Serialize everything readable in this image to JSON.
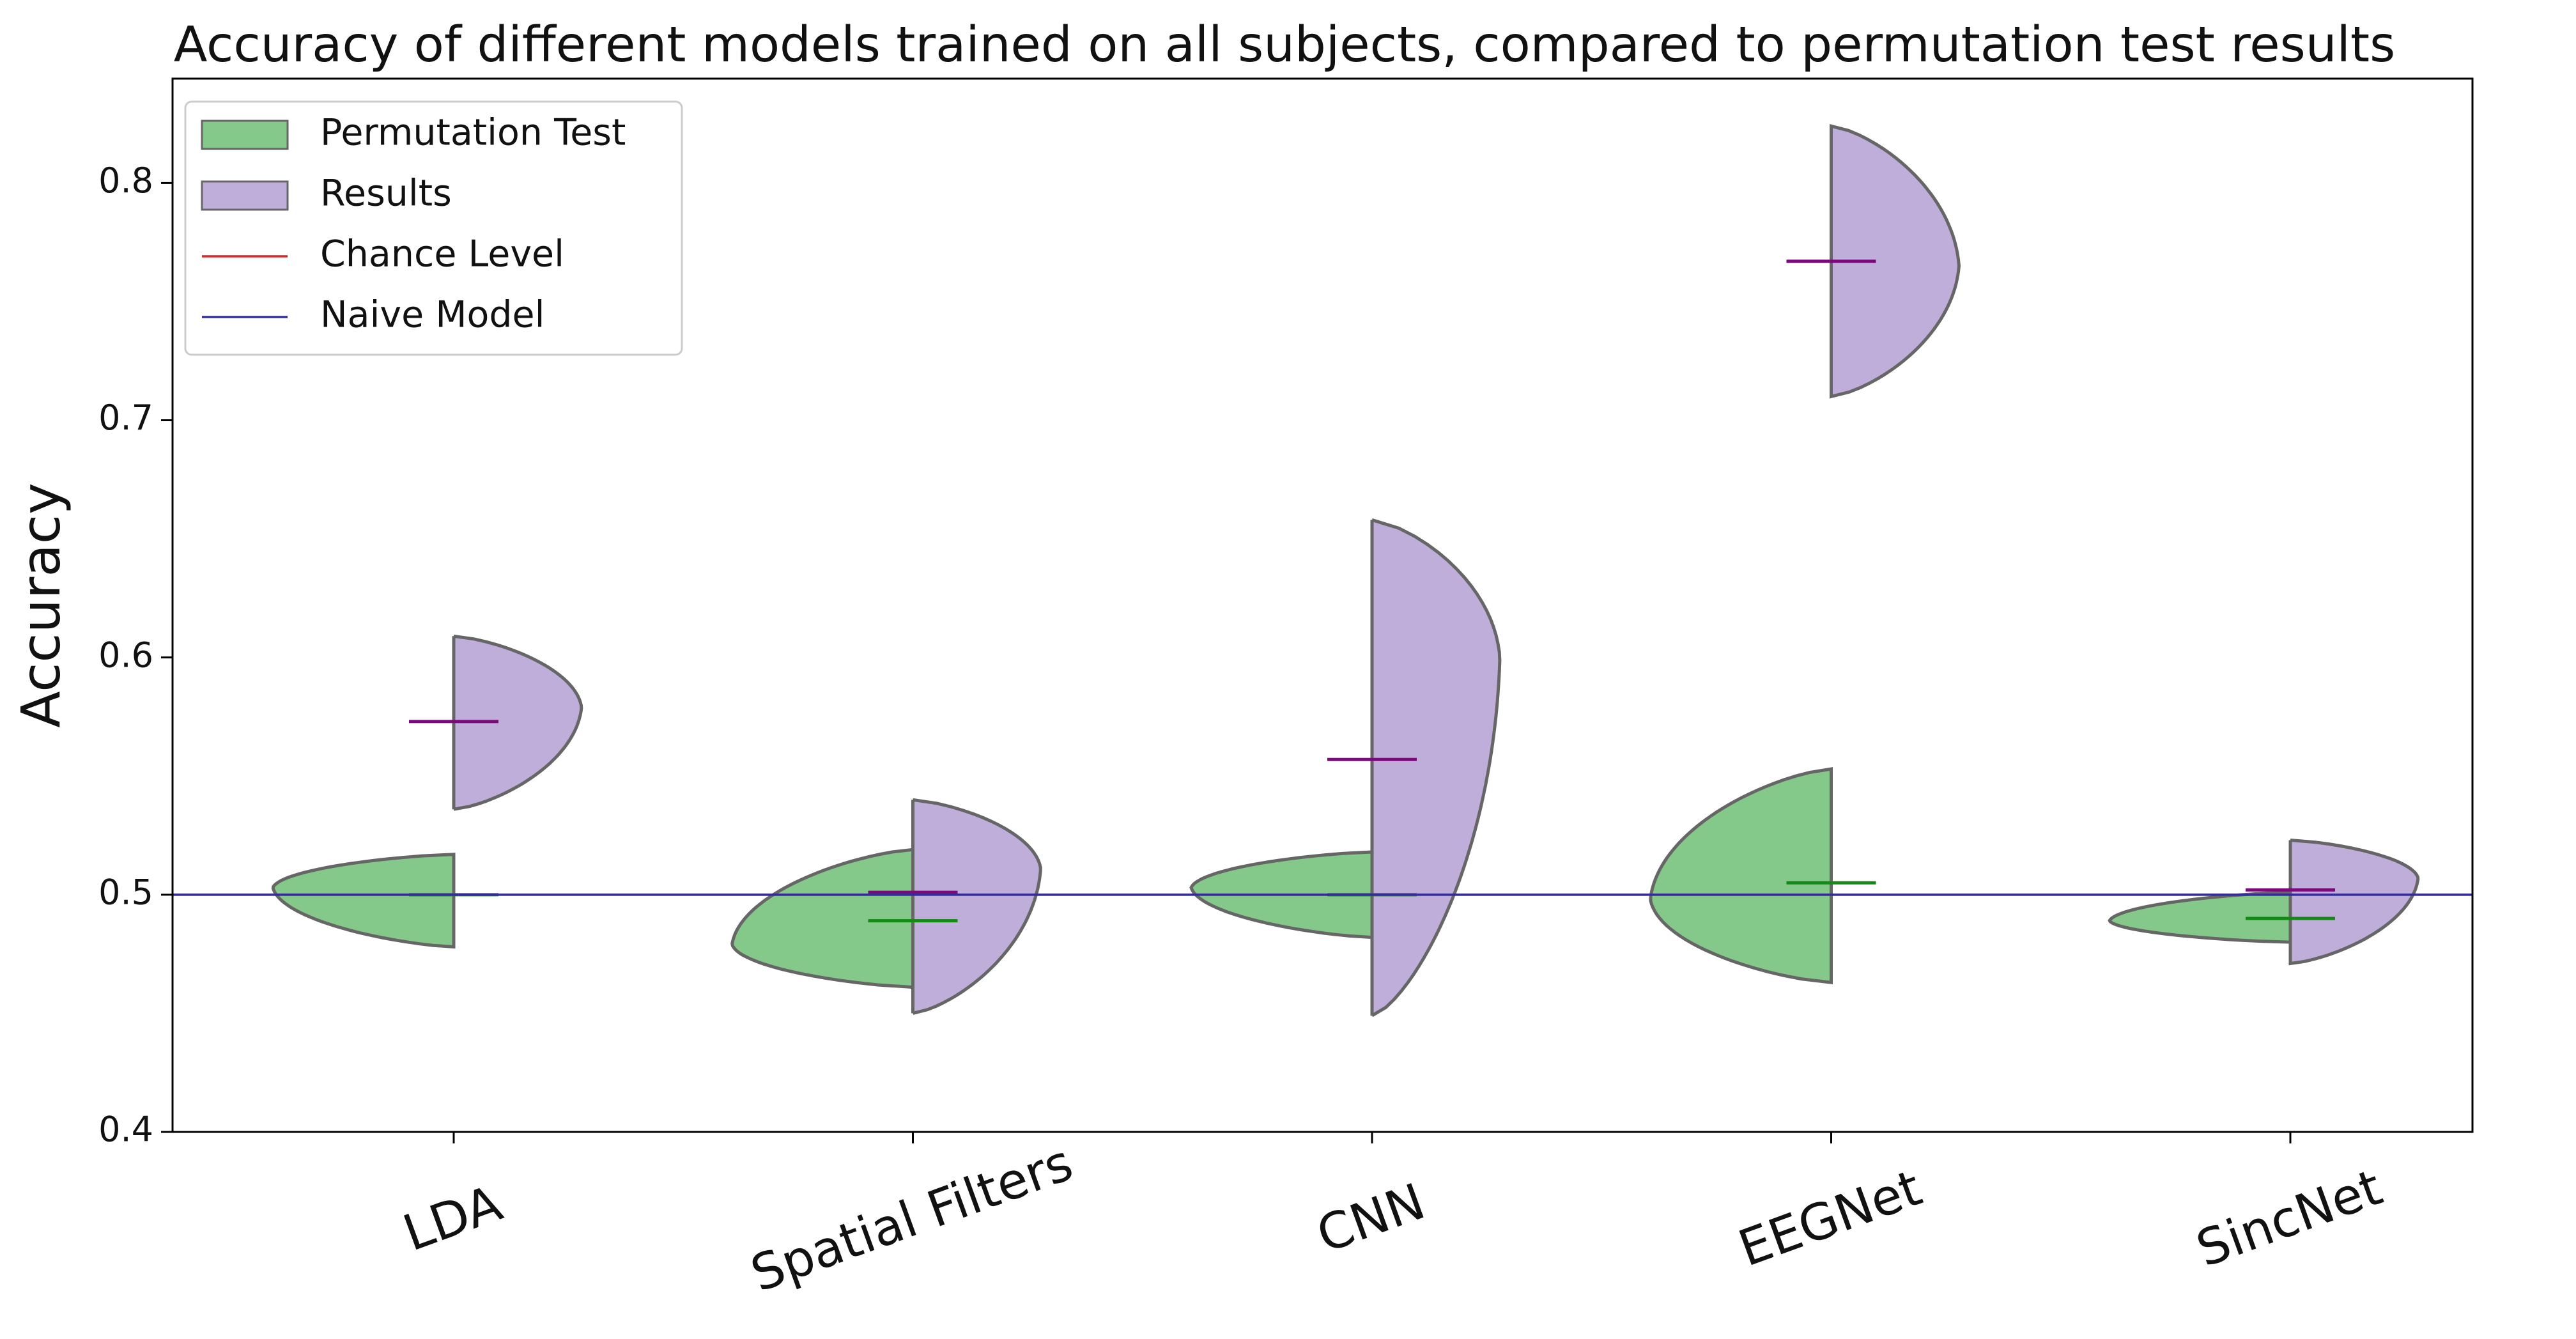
{
  "chart_data": {
    "type": "violin",
    "title": "Accuracy of different models trained on all subjects, compared to permutation test results",
    "ylabel": "Accuracy",
    "categories": [
      "LDA",
      "Spatial Filters",
      "CNN",
      "EEGNet",
      "SincNet"
    ],
    "series": [
      {
        "name": "Permutation Test",
        "color": "#85c98a",
        "median_color": "#138a13",
        "side": "left",
        "min": [
          0.478,
          0.461,
          0.482,
          0.463,
          0.48
        ],
        "mode": [
          0.503,
          0.479,
          0.503,
          0.498,
          0.489
        ],
        "max": [
          0.517,
          0.519,
          0.518,
          0.553,
          0.501
        ],
        "median": [
          0.5,
          0.489,
          0.5,
          0.505,
          0.49
        ]
      },
      {
        "name": "Results",
        "color": "#bfaed9",
        "median_color": "#7a0a7a",
        "side": "right",
        "min": [
          0.536,
          0.45,
          0.449,
          0.71,
          0.471
        ],
        "mode": [
          0.579,
          0.511,
          0.6,
          0.765,
          0.507
        ],
        "max": [
          0.609,
          0.54,
          0.658,
          0.824,
          0.523
        ],
        "median": [
          0.573,
          0.501,
          0.557,
          0.767,
          0.502
        ]
      }
    ],
    "reference_lines": [
      {
        "name": "Chance Level",
        "value": 0.5,
        "color": "#d62728"
      },
      {
        "name": "Naive Model",
        "value": 0.5,
        "color": "#2e2e9e"
      }
    ],
    "ylim": [
      0.4,
      0.844
    ],
    "yticks": [
      0.4,
      0.5,
      0.6,
      0.7,
      0.8
    ],
    "legend": "upper left"
  }
}
